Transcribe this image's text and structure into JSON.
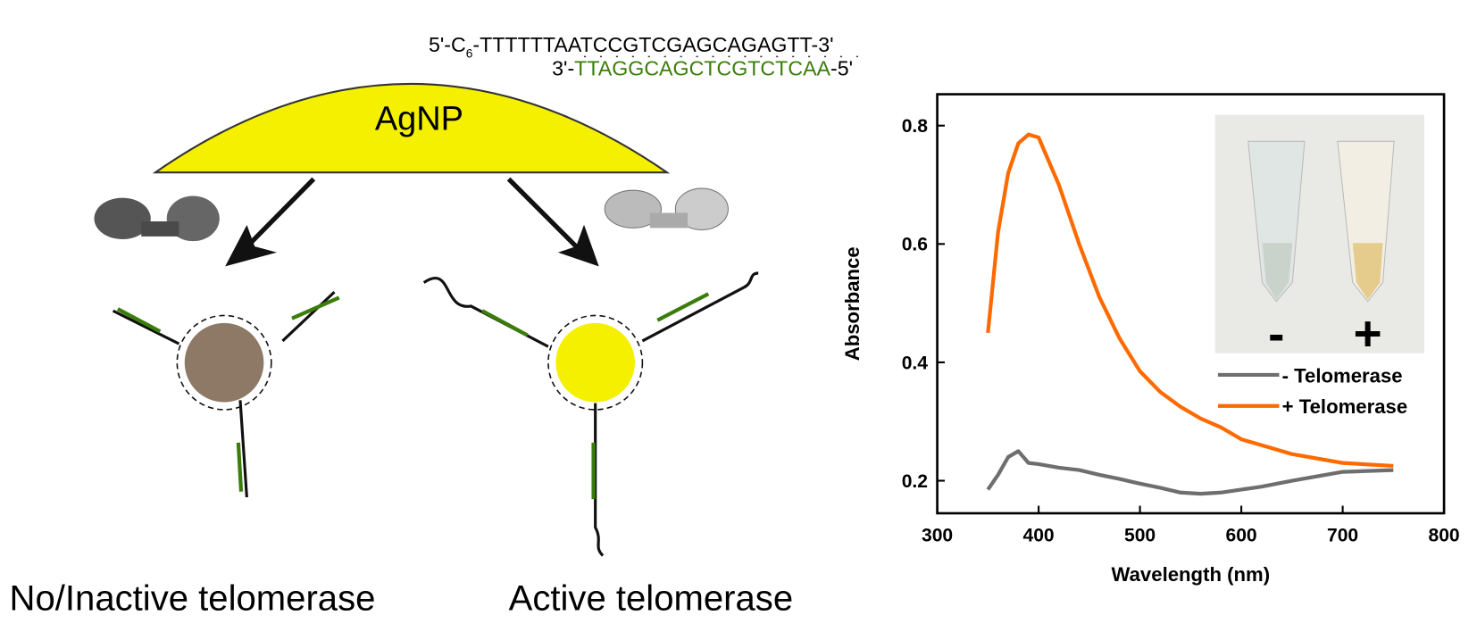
{
  "diagram": {
    "strand_top": [
      "5'-C",
      "6",
      "-TTTTTTAATCCGTCGAGCAGAGTT-3'"
    ],
    "strand_bottom": [
      "3'-",
      "TTAGGCAGCTCGTCTCAA",
      "-5'"
    ],
    "particle_label": "AgNP",
    "label_left": "No/Inactive telomerase",
    "label_right": "Active telomerase"
  },
  "chart_data": {
    "type": "line",
    "xlabel": "Wavelength (nm)",
    "ylabel": "Absorbance",
    "x": [
      350,
      360,
      370,
      380,
      390,
      400,
      420,
      440,
      460,
      480,
      500,
      520,
      540,
      560,
      580,
      600,
      620,
      650,
      700,
      750
    ],
    "series": [
      {
        "name": "- Telomerase",
        "color": "#6e6e6e",
        "values": [
          0.185,
          0.21,
          0.24,
          0.25,
          0.23,
          0.228,
          0.222,
          0.218,
          0.21,
          0.203,
          0.195,
          0.188,
          0.18,
          0.178,
          0.18,
          0.185,
          0.19,
          0.2,
          0.215,
          0.218
        ]
      },
      {
        "name": "+ Telomerase",
        "color": "#ff6a00",
        "values": [
          0.45,
          0.62,
          0.72,
          0.77,
          0.785,
          0.78,
          0.7,
          0.6,
          0.51,
          0.44,
          0.385,
          0.35,
          0.325,
          0.305,
          0.29,
          0.27,
          0.26,
          0.245,
          0.23,
          0.225
        ]
      }
    ],
    "xlim": [
      300,
      800
    ],
    "xticks": [
      300,
      400,
      500,
      600,
      700,
      800
    ],
    "ylim": [
      0.145,
      0.853
    ],
    "yticks": [
      0.2,
      0.4,
      0.6,
      0.8
    ],
    "legend": "right",
    "inset_labels": [
      "-",
      "+"
    ]
  }
}
